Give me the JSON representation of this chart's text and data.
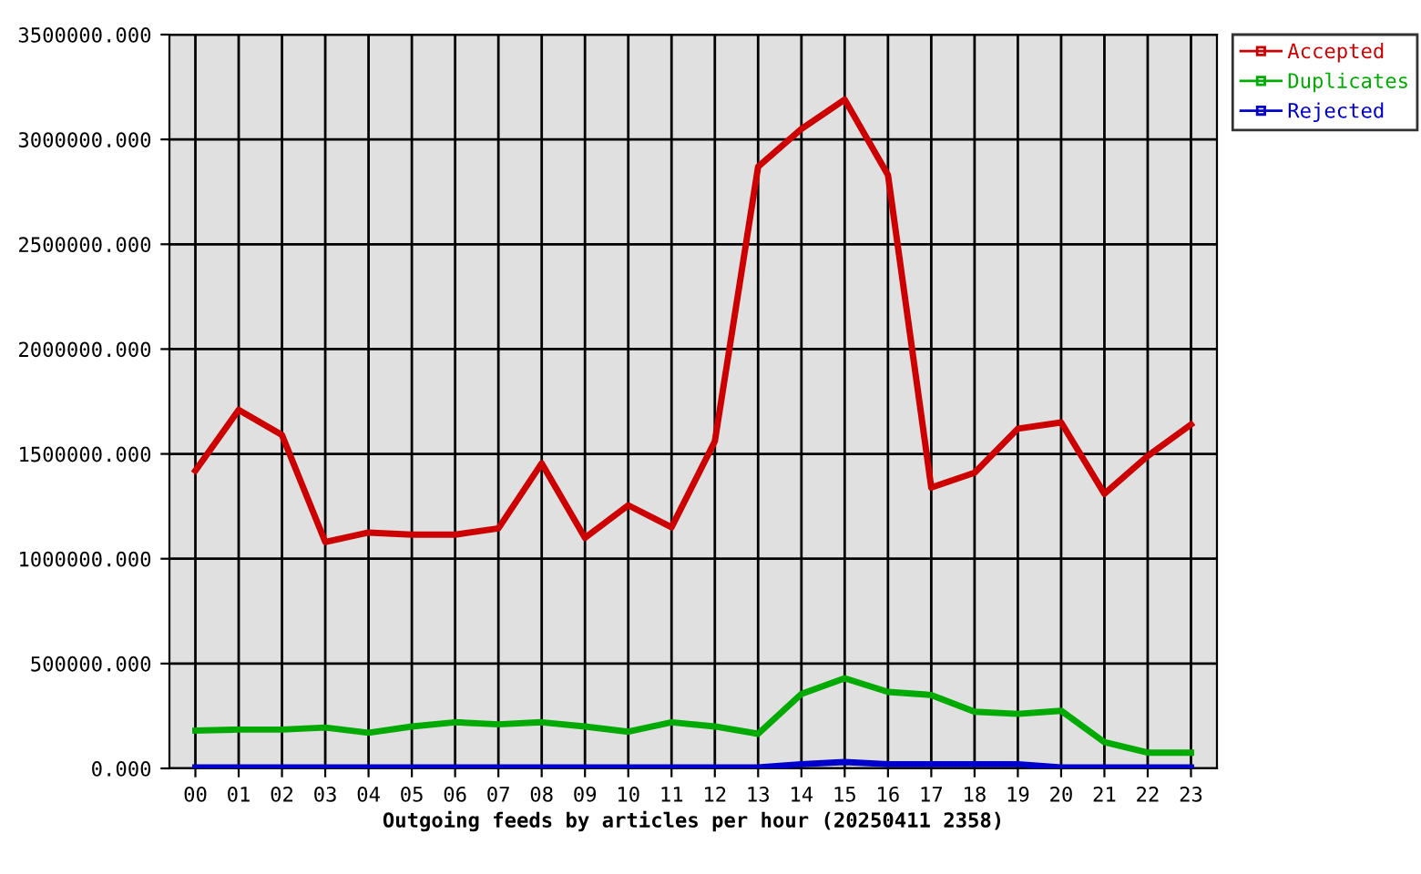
{
  "chart_data": {
    "type": "line",
    "xlabel": "Outgoing feeds by articles per hour (20250411 2358)",
    "categories": [
      "00",
      "01",
      "02",
      "03",
      "04",
      "05",
      "06",
      "07",
      "08",
      "09",
      "10",
      "11",
      "12",
      "13",
      "14",
      "15",
      "16",
      "17",
      "18",
      "19",
      "20",
      "21",
      "22",
      "23"
    ],
    "series": [
      {
        "name": "Accepted",
        "color": "#cc0000",
        "values": [
          1420000,
          1710000,
          1590000,
          1080000,
          1125000,
          1115000,
          1115000,
          1145000,
          1455000,
          1100000,
          1255000,
          1150000,
          1560000,
          2870000,
          3050000,
          3190000,
          2830000,
          1340000,
          1410000,
          1620000,
          1650000,
          1310000,
          1490000,
          1640000
        ]
      },
      {
        "name": "Duplicates",
        "color": "#00aa00",
        "values": [
          180000,
          185000,
          185000,
          195000,
          170000,
          200000,
          220000,
          210000,
          220000,
          200000,
          175000,
          220000,
          200000,
          165000,
          355000,
          430000,
          365000,
          350000,
          270000,
          260000,
          275000,
          125000,
          75000,
          75000
        ]
      },
      {
        "name": "Rejected",
        "color": "#0000cc",
        "values": [
          5000,
          5000,
          5000,
          5000,
          5000,
          5000,
          5000,
          5000,
          5000,
          5000,
          5000,
          5000,
          5000,
          5000,
          20000,
          30000,
          20000,
          20000,
          20000,
          20000,
          5000,
          5000,
          5000,
          5000
        ]
      }
    ],
    "ylim": [
      0,
      3500000
    ],
    "yticks": [
      {
        "value": 0,
        "label": "0.000"
      },
      {
        "value": 500000,
        "label": "500000.000"
      },
      {
        "value": 1000000,
        "label": "1000000.000"
      },
      {
        "value": 1500000,
        "label": "1500000.000"
      },
      {
        "value": 2000000,
        "label": "2000000.000"
      },
      {
        "value": 2500000,
        "label": "2500000.000"
      },
      {
        "value": 3000000,
        "label": "3000000.000"
      },
      {
        "value": 3500000,
        "label": "3500000.000"
      }
    ],
    "grid": true,
    "legend": "top right",
    "marker": "none",
    "line_style": "solid"
  }
}
